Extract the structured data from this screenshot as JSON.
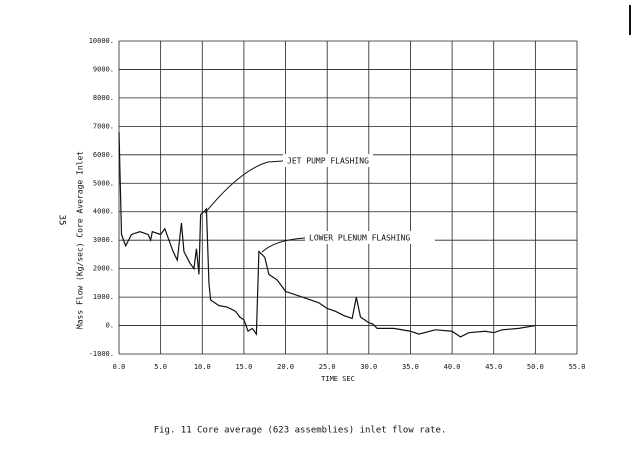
{
  "page_number": "35",
  "caption": "Fig. 11  Core average (623 assemblies) inlet flow rate.",
  "chart_data": {
    "type": "line",
    "x_label": "TIME   SEC",
    "y_label": "Mass Flow (Kg/sec) Core Average Inlet",
    "annotations": [
      "JET PUMP FLASHING",
      "LOWER PLENUM FLASHING"
    ],
    "x": [
      0,
      0.3,
      0.8,
      1.5,
      2.5,
      3.5,
      3.8,
      4,
      5,
      5.5,
      6,
      6.5,
      7,
      7.5,
      7.8,
      8.5,
      9,
      9.3,
      9.6,
      9.8,
      10.2,
      10.5,
      10.8,
      11,
      12,
      13,
      14,
      14.5,
      15,
      15.5,
      16,
      16.5,
      16.8,
      17.5,
      18,
      19,
      20,
      22,
      24,
      25,
      26,
      27,
      28,
      28.5,
      29,
      30,
      30.5,
      31,
      33,
      35,
      36,
      38,
      40,
      41,
      42,
      44,
      45,
      46,
      48,
      50
    ],
    "values": [
      6800,
      3200,
      2800,
      3200,
      3300,
      3200,
      3000,
      3300,
      3200,
      3400,
      3000,
      2600,
      2300,
      3600,
      2600,
      2200,
      2000,
      2700,
      1800,
      3900,
      4000,
      4100,
      1500,
      900,
      700,
      650,
      500,
      300,
      200,
      -200,
      -100,
      -300,
      2600,
      2400,
      1800,
      1600,
      1200,
      1000,
      800,
      600,
      500,
      350,
      250,
      1000,
      300,
      100,
      50,
      -100,
      -100,
      -200,
      -300,
      -150,
      -200,
      -400,
      -250,
      -200,
      -250,
      -150,
      -100,
      0
    ],
    "color": "#111111",
    "xlim": [
      0,
      55
    ],
    "ylim": [
      -1000,
      10000
    ],
    "xticks": [
      {
        "value": 0,
        "label": "0.0"
      },
      {
        "value": 5,
        "label": "5.0"
      },
      {
        "value": 10,
        "label": "10.0"
      },
      {
        "value": 15,
        "label": "15.0"
      },
      {
        "value": 20,
        "label": "20.0"
      },
      {
        "value": 25,
        "label": "25.0"
      },
      {
        "value": 30,
        "label": "30.0"
      },
      {
        "value": 35,
        "label": "35.0"
      },
      {
        "value": 40,
        "label": "40.0"
      },
      {
        "value": 45,
        "label": "45.0"
      },
      {
        "value": 50,
        "label": "50.0"
      },
      {
        "value": 55,
        "label": "55.0"
      }
    ],
    "yticks": [
      {
        "value": -1000,
        "label": "-1000."
      },
      {
        "value": 0,
        "label": "0."
      },
      {
        "value": 1000,
        "label": "1000."
      },
      {
        "value": 2000,
        "label": "2000."
      },
      {
        "value": 3000,
        "label": "3000."
      },
      {
        "value": 4000,
        "label": "4000."
      },
      {
        "value": 5000,
        "label": "5000."
      },
      {
        "value": 6000,
        "label": "6000."
      },
      {
        "value": 7000,
        "label": "7000."
      },
      {
        "value": 8000,
        "label": "8000."
      },
      {
        "value": 9000,
        "label": "9000."
      },
      {
        "value": 10000,
        "label": "10000."
      }
    ],
    "grid": true
  }
}
